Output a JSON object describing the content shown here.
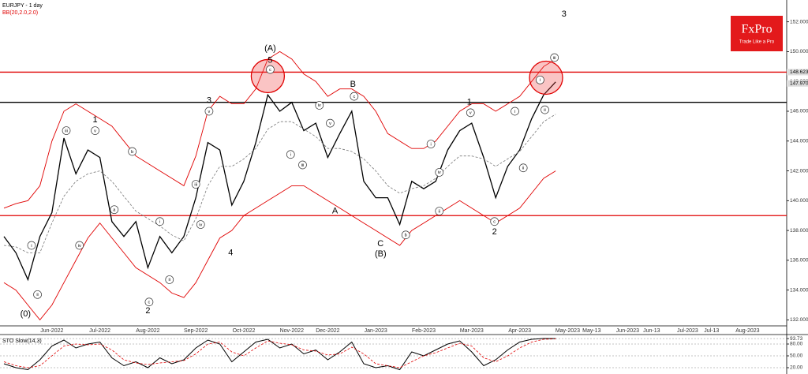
{
  "logo": {
    "title": "FxPro",
    "subtitle": "Trade Like a Pro"
  },
  "chart_data": [
    {
      "type": "line",
      "title": "EURJPY - 1 day",
      "subtitle": "BB(20,2.0,2.0)",
      "categories": [
        null,
        null,
        null,
        null,
        "Jun-2022",
        null,
        null,
        null,
        "Jul-2022",
        null,
        null,
        null,
        "Aug-2022",
        null,
        null,
        null,
        "Sep-2022",
        null,
        null,
        null,
        "Oct-2022",
        null,
        null,
        null,
        "Nov-2022",
        null,
        null,
        "Dec-2022",
        null,
        null,
        null,
        "Jan-2023",
        null,
        null,
        null,
        "Feb-2023",
        null,
        null,
        null,
        "Mar-2023",
        null,
        null,
        null,
        "Apr-2023",
        null,
        null,
        null,
        "May-2023",
        null,
        "May-13",
        null,
        null,
        "Jun-2023",
        null,
        "Jun-13",
        null,
        null,
        "Jul-2023",
        null,
        "Jul-13",
        null,
        null,
        "Aug-2023",
        null,
        null,
        null
      ],
      "series": [
        {
          "color": "#000000",
          "width": 1.3,
          "values": [
            137.6,
            136.5,
            134.7,
            137.6,
            139.2,
            144.2,
            141.8,
            143.4,
            142.9,
            138.6,
            137.6,
            138.6,
            135.5,
            137.6,
            136.5,
            137.6,
            140.2,
            143.9,
            143.4,
            139.7,
            141.3,
            143.9,
            147.1,
            146.0,
            146.6,
            144.7,
            145.2,
            142.9,
            144.5,
            146.0,
            141.3,
            140.2,
            140.2,
            138.4,
            141.3,
            140.8,
            141.3,
            143.4,
            144.7,
            145.2,
            142.9,
            140.2,
            142.3,
            143.4,
            145.5,
            147.1,
            147.97,
            null,
            null,
            null,
            null,
            null,
            null,
            null,
            null,
            null,
            null,
            null,
            null,
            null,
            null,
            null,
            null,
            null,
            null,
            null
          ]
        },
        {
          "color": "#e00000",
          "width": 0.9,
          "values": [
            139.5,
            139.8,
            140.0,
            141.0,
            144.0,
            146.0,
            146.5,
            146.0,
            145.5,
            145.0,
            144.0,
            143.0,
            142.5,
            142.0,
            141.5,
            141.0,
            143.0,
            146.0,
            147.0,
            146.5,
            146.5,
            147.5,
            149.5,
            150.0,
            149.5,
            148.5,
            148.0,
            147.0,
            147.5,
            147.5,
            147.0,
            146.0,
            144.5,
            144.0,
            143.5,
            143.5,
            144.0,
            145.0,
            146.0,
            146.5,
            146.5,
            146.0,
            146.5,
            147.0,
            148.0,
            149.0,
            149.5,
            null,
            null,
            null,
            null,
            null,
            null,
            null,
            null,
            null,
            null,
            null,
            null,
            null,
            null,
            null,
            null,
            null,
            null,
            null
          ]
        },
        {
          "color": "#777777",
          "width": 0.8,
          "dash": true,
          "values": [
            137,
            136.9,
            136.5,
            136.5,
            138.5,
            140.3,
            141.3,
            141.8,
            142,
            141.3,
            140.3,
            139.3,
            138.8,
            138.3,
            137.7,
            137.3,
            138.8,
            141,
            142.3,
            142.3,
            142.8,
            143.5,
            144.8,
            145.3,
            145.3,
            144.8,
            144.3,
            143.5,
            143.5,
            143.3,
            142.8,
            142,
            141,
            140.5,
            140.8,
            141,
            141.5,
            142.3,
            143,
            143,
            142.8,
            142.3,
            142.8,
            143.3,
            144.3,
            145.3,
            145.8,
            null,
            null,
            null,
            null,
            null,
            null,
            null,
            null,
            null,
            null,
            null,
            null,
            null,
            null,
            null,
            null,
            null,
            null,
            null
          ]
        },
        {
          "color": "#e00000",
          "width": 0.9,
          "values": [
            134.5,
            134.0,
            133.0,
            132.0,
            133.0,
            134.5,
            136.0,
            137.5,
            138.5,
            137.5,
            136.5,
            135.5,
            135.0,
            134.5,
            133.8,
            133.5,
            134.5,
            136.0,
            137.5,
            138.0,
            139.0,
            139.5,
            140.0,
            140.5,
            141.0,
            141.0,
            140.5,
            140.0,
            139.5,
            139.0,
            138.5,
            138.0,
            137.5,
            137.0,
            138.0,
            138.5,
            139.0,
            139.5,
            140.0,
            139.5,
            139.0,
            138.5,
            139.0,
            139.5,
            140.5,
            141.5,
            142.0,
            null,
            null,
            null,
            null,
            null,
            null,
            null,
            null,
            null,
            null,
            null,
            null,
            null,
            null,
            null,
            null,
            null,
            null,
            null
          ]
        }
      ],
      "ylim": [
        131.6,
        153.2
      ],
      "yticks": [
        {
          "value": 132,
          "label": "132.000"
        },
        {
          "value": 134,
          "label": "134.000"
        },
        {
          "value": 136,
          "label": "136.000"
        },
        {
          "value": 138,
          "label": "138.000"
        },
        {
          "value": 140,
          "label": "140.000"
        },
        {
          "value": 142,
          "label": "142.000"
        },
        {
          "value": 144,
          "label": "144.000"
        },
        {
          "value": 146,
          "label": "146.000"
        },
        {
          "value": 148,
          "label": "148.000"
        },
        {
          "value": 150,
          "label": "150.000"
        },
        {
          "value": 152,
          "label": "152.000"
        }
      ],
      "levels": [
        {
          "value": 148.623,
          "color": "#e00000"
        },
        {
          "value": 146.6,
          "color": "#000000"
        },
        {
          "value": 139.0,
          "color": "#e00000"
        }
      ],
      "price_labels": [
        {
          "value": 148.623,
          "label": "148.623",
          "color": "#dddddd"
        },
        {
          "value": 147.97,
          "label": "147.970",
          "color": "#dddddd"
        }
      ],
      "highlights": [
        {
          "x": 22.0,
          "y": 148.36
        },
        {
          "x": 45.2,
          "y": 148.25
        }
      ],
      "annotations": [
        {
          "text": "(0)",
          "x": 1.8,
          "y": 132.4
        },
        {
          "text": "1",
          "x": 7.6,
          "y": 145.4
        },
        {
          "text": "2",
          "x": 12.0,
          "y": 132.6
        },
        {
          "text": "3",
          "x": 17.1,
          "y": 146.7
        },
        {
          "text": "4",
          "x": 18.9,
          "y": 136.5
        },
        {
          "text": "5",
          "x": 22.2,
          "y": 149.4
        },
        {
          "text": "(A)",
          "x": 22.2,
          "y": 150.2
        },
        {
          "text": "A",
          "x": 27.6,
          "y": 139.3
        },
        {
          "text": "B",
          "x": 29.1,
          "y": 147.8
        },
        {
          "text": "C",
          "x": 31.4,
          "y": 137.1
        },
        {
          "text": "(B)",
          "x": 31.4,
          "y": 136.4
        },
        {
          "text": "1",
          "x": 38.8,
          "y": 146.6
        },
        {
          "text": "2",
          "x": 40.9,
          "y": 137.9
        },
        {
          "text": "3",
          "x": 46.7,
          "y": 152.5
        }
      ],
      "circled": [
        {
          "text": "i",
          "x": 2.3,
          "y": 137.0
        },
        {
          "text": "ii",
          "x": 2.8,
          "y": 133.7
        },
        {
          "text": "iii",
          "x": 5.2,
          "y": 144.7
        },
        {
          "text": "iv",
          "x": 6.3,
          "y": 137.0
        },
        {
          "text": "v",
          "x": 7.6,
          "y": 144.7
        },
        {
          "text": "a",
          "x": 9.2,
          "y": 139.4
        },
        {
          "text": "b",
          "x": 10.7,
          "y": 143.3
        },
        {
          "text": "c",
          "x": 12.1,
          "y": 133.2
        },
        {
          "text": "i",
          "x": 13.0,
          "y": 138.6
        },
        {
          "text": "ii",
          "x": 13.8,
          "y": 134.7
        },
        {
          "text": "iii",
          "x": 16.0,
          "y": 141.1
        },
        {
          "text": "iv",
          "x": 16.4,
          "y": 138.4
        },
        {
          "text": "v",
          "x": 17.1,
          "y": 146.0
        },
        {
          "text": "c",
          "x": 22.2,
          "y": 148.8
        },
        {
          "text": "i",
          "x": 23.9,
          "y": 143.1
        },
        {
          "text": "iii",
          "x": 24.9,
          "y": 142.4
        },
        {
          "text": "iv",
          "x": 26.3,
          "y": 146.4
        },
        {
          "text": "v",
          "x": 27.2,
          "y": 145.2
        },
        {
          "text": "c",
          "x": 29.2,
          "y": 147.0
        },
        {
          "text": "b",
          "x": 33.5,
          "y": 137.7
        },
        {
          "text": "i",
          "x": 35.6,
          "y": 143.8
        },
        {
          "text": "ii",
          "x": 36.3,
          "y": 139.3
        },
        {
          "text": "iv",
          "x": 36.3,
          "y": 141.9
        },
        {
          "text": "v",
          "x": 38.9,
          "y": 145.9
        },
        {
          "text": "c",
          "x": 40.9,
          "y": 138.6
        },
        {
          "text": "i",
          "x": 42.6,
          "y": 146.0
        },
        {
          "text": "ii",
          "x": 43.3,
          "y": 142.2
        },
        {
          "text": "i",
          "x": 44.7,
          "y": 148.1
        },
        {
          "text": "ii",
          "x": 45.1,
          "y": 146.1
        },
        {
          "text": "iii",
          "x": 45.9,
          "y": 149.6
        }
      ]
    },
    {
      "type": "line",
      "title": "STO Slow(14,3)",
      "series": [
        {
          "color": "#000000",
          "width": 1,
          "values": [
            30,
            20,
            15,
            40,
            75,
            90,
            70,
            80,
            85,
            45,
            25,
            35,
            20,
            45,
            30,
            40,
            70,
            90,
            80,
            35,
            60,
            85,
            92,
            70,
            80,
            55,
            65,
            40,
            60,
            85,
            30,
            20,
            25,
            15,
            60,
            50,
            65,
            80,
            88,
            60,
            25,
            40,
            65,
            85,
            92,
            94,
            93.73,
            null,
            null,
            null,
            null,
            null,
            null,
            null,
            null,
            null,
            null,
            null,
            null,
            null,
            null,
            null,
            null,
            null,
            null,
            null
          ]
        },
        {
          "color": "#e00000",
          "width": 0.8,
          "dash": true,
          "values": [
            35,
            25,
            20,
            25,
            50,
            75,
            80,
            78,
            80,
            65,
            40,
            32,
            28,
            32,
            35,
            38,
            55,
            80,
            85,
            60,
            50,
            70,
            88,
            82,
            78,
            65,
            62,
            52,
            55,
            72,
            55,
            30,
            25,
            20,
            35,
            50,
            58,
            70,
            82,
            75,
            45,
            35,
            50,
            70,
            85,
            92,
            93,
            null,
            null,
            null,
            null,
            null,
            null,
            null,
            null,
            null,
            null,
            null,
            null,
            null,
            null,
            null,
            null,
            null,
            null,
            null
          ]
        }
      ],
      "ylim": [
        10,
        100
      ],
      "yticks": [
        {
          "value": 93.73,
          "label": "93.73"
        },
        {
          "value": 80,
          "label": "80.00"
        },
        {
          "value": 50,
          "label": "50.00"
        },
        {
          "value": 20,
          "label": "20.00"
        }
      ]
    }
  ]
}
